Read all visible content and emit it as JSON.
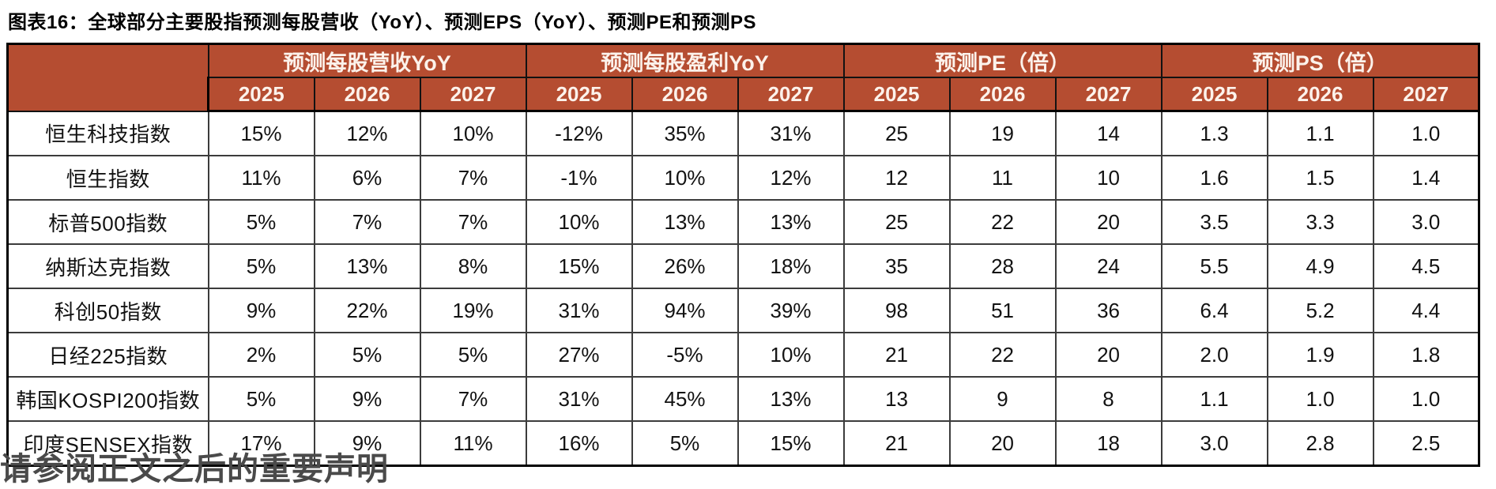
{
  "title": "图表16：全球部分主要股指预测每股营收（YoY）、预测EPS（YoY）、预测PE和预测PS",
  "footer": {
    "text": "请参阅正文之后的重要声明"
  },
  "colors": {
    "header_bg": "#B54D31",
    "header_text": "#FCF2EB",
    "body_text": "#121212",
    "grid_line": "#3c3c3c",
    "outer_border": "#000000"
  },
  "table": {
    "groups": [
      {
        "label": "预测每股营收YoY"
      },
      {
        "label": "预测每股盈利YoY"
      },
      {
        "label": "预测PE（倍）"
      },
      {
        "label": "预测PS（倍）"
      }
    ],
    "years": [
      "2025",
      "2026",
      "2027"
    ],
    "rows": [
      {
        "name": "恒生科技指数",
        "values": [
          "15%",
          "12%",
          "10%",
          "-12%",
          "35%",
          "31%",
          "25",
          "19",
          "14",
          "1.3",
          "1.1",
          "1.0"
        ]
      },
      {
        "name": "恒生指数",
        "values": [
          "11%",
          "6%",
          "7%",
          "-1%",
          "10%",
          "12%",
          "12",
          "11",
          "10",
          "1.6",
          "1.5",
          "1.4"
        ]
      },
      {
        "name": "标普500指数",
        "values": [
          "5%",
          "7%",
          "7%",
          "10%",
          "13%",
          "13%",
          "25",
          "22",
          "20",
          "3.5",
          "3.3",
          "3.0"
        ]
      },
      {
        "name": "纳斯达克指数",
        "values": [
          "5%",
          "13%",
          "8%",
          "15%",
          "26%",
          "18%",
          "35",
          "28",
          "24",
          "5.5",
          "4.9",
          "4.5"
        ]
      },
      {
        "name": "科创50指数",
        "values": [
          "9%",
          "22%",
          "19%",
          "31%",
          "94%",
          "39%",
          "98",
          "51",
          "36",
          "6.4",
          "5.2",
          "4.4"
        ]
      },
      {
        "name": "日经225指数",
        "values": [
          "2%",
          "5%",
          "5%",
          "27%",
          "-5%",
          "10%",
          "21",
          "22",
          "20",
          "2.0",
          "1.9",
          "1.8"
        ]
      },
      {
        "name": "韩国KOSPI200指数",
        "values": [
          "5%",
          "9%",
          "7%",
          "31%",
          "45%",
          "13%",
          "13",
          "9",
          "8",
          "1.1",
          "1.0",
          "1.0"
        ]
      },
      {
        "name": "印度SENSEX指数",
        "values": [
          "17%",
          "9%",
          "11%",
          "16%",
          "5%",
          "15%",
          "21",
          "20",
          "18",
          "3.0",
          "2.8",
          "2.5"
        ]
      }
    ]
  }
}
